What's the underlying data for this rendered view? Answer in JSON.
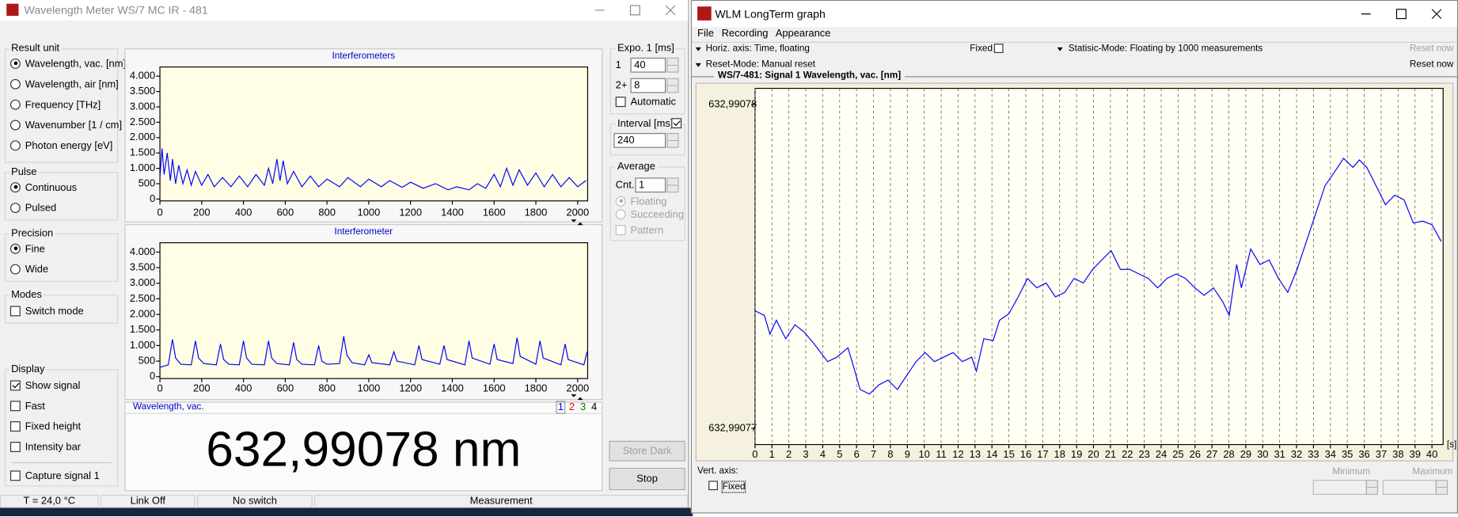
{
  "left_window": {
    "title": "Wavelength Meter WS/7 MC IR - 481",
    "result_unit": {
      "label": "Result unit",
      "options": [
        "Wavelength, vac.  [nm]",
        "Wavelength, air  [nm]",
        "Frequency  [THz]",
        "Wavenumber  [1 / cm]",
        "Photon energy  [eV]"
      ],
      "selected": 0
    },
    "pulse": {
      "label": "Pulse",
      "options": [
        "Continuous",
        "Pulsed"
      ],
      "selected": 0
    },
    "precision": {
      "label": "Precision",
      "options": [
        "Fine",
        "Wide"
      ],
      "selected": 0
    },
    "modes": {
      "label": "Modes",
      "options": [
        {
          "label": "Switch mode",
          "checked": false
        }
      ]
    },
    "display": {
      "label": "Display",
      "options": [
        {
          "label": "Show signal",
          "checked": true
        },
        {
          "label": "Fast",
          "checked": false
        },
        {
          "label": "Fixed height",
          "checked": false
        },
        {
          "label": "Intensity bar",
          "checked": false
        },
        {
          "label": "Capture signal 1",
          "checked": false
        }
      ]
    },
    "charts": [
      {
        "type": "line",
        "title": "Interferometers",
        "color": "#0000ff",
        "x": [
          0,
          10,
          20,
          35,
          50,
          60,
          75,
          90,
          110,
          130,
          150,
          170,
          200,
          230,
          260,
          300,
          340,
          380,
          420,
          460,
          500,
          520,
          540,
          560,
          575,
          590,
          610,
          640,
          680,
          720,
          760,
          800,
          860,
          900,
          960,
          1000,
          1060,
          1100,
          1160,
          1200,
          1260,
          1320,
          1380,
          1420,
          1480,
          1520,
          1560,
          1600,
          1630,
          1660,
          1690,
          1720,
          1760,
          1800,
          1840,
          1880,
          1920,
          1960,
          2000,
          2040
        ],
        "values": [
          700,
          1650,
          800,
          1500,
          600,
          1300,
          500,
          1100,
          500,
          950,
          450,
          900,
          450,
          800,
          400,
          700,
          400,
          750,
          400,
          800,
          450,
          1000,
          500,
          1300,
          600,
          1250,
          500,
          900,
          400,
          750,
          400,
          650,
          400,
          700,
          400,
          650,
          400,
          600,
          380,
          550,
          350,
          500,
          300,
          400,
          300,
          500,
          350,
          800,
          400,
          1000,
          450,
          950,
          450,
          850,
          400,
          800,
          400,
          700,
          400,
          600
        ],
        "xlim": [
          0,
          2048
        ],
        "ylim": [
          -60,
          4300
        ],
        "xticks": [
          0,
          200,
          400,
          600,
          800,
          1000,
          1200,
          1400,
          1600,
          1800,
          2000
        ],
        "yticks": [
          0,
          500,
          {
            "value": 1000,
            "label": "1.000"
          },
          {
            "value": 1500,
            "label": "1.500"
          },
          {
            "value": 2000,
            "label": "2.000"
          },
          {
            "value": 2500,
            "label": "2.500"
          },
          {
            "value": 3000,
            "label": "3.000"
          },
          {
            "value": 3500,
            "label": "3.500"
          },
          {
            "value": 4000,
            "label": "4.000"
          }
        ]
      },
      {
        "type": "line",
        "title": "Interferometer",
        "color": "#0000ff",
        "x": [
          0,
          40,
          60,
          75,
          100,
          150,
          170,
          185,
          210,
          270,
          290,
          305,
          330,
          380,
          400,
          415,
          440,
          500,
          520,
          535,
          560,
          620,
          640,
          655,
          680,
          740,
          760,
          775,
          800,
          860,
          880,
          895,
          920,
          980,
          1000,
          1015,
          1100,
          1120,
          1135,
          1220,
          1240,
          1255,
          1340,
          1360,
          1375,
          1460,
          1480,
          1495,
          1580,
          1600,
          1615,
          1690,
          1710,
          1725,
          1800,
          1820,
          1835,
          1920,
          1940,
          1955,
          2030,
          2045
        ],
        "values": [
          300,
          380,
          1200,
          600,
          400,
          380,
          1150,
          600,
          420,
          380,
          1050,
          550,
          400,
          380,
          1150,
          600,
          400,
          380,
          1150,
          600,
          420,
          380,
          1100,
          550,
          400,
          380,
          1000,
          500,
          400,
          420,
          1300,
          700,
          450,
          380,
          700,
          450,
          380,
          800,
          500,
          380,
          1000,
          550,
          400,
          1000,
          550,
          380,
          1150,
          600,
          400,
          1050,
          550,
          420,
          1250,
          650,
          400,
          1150,
          600,
          380,
          1050,
          550,
          380,
          800
        ],
        "xlim": [
          0,
          2048
        ],
        "ylim": [
          -60,
          4300
        ],
        "xticks": [
          0,
          200,
          400,
          600,
          800,
          1000,
          1200,
          1400,
          1600,
          1800,
          2000
        ],
        "yticks": [
          0,
          500,
          {
            "value": 1000,
            "label": "1.000"
          },
          {
            "value": 1500,
            "label": "1.500"
          },
          {
            "value": 2000,
            "label": "2.000"
          },
          {
            "value": 2500,
            "label": "2.500"
          },
          {
            "value": 3000,
            "label": "3.000"
          },
          {
            "value": 3500,
            "label": "3.500"
          },
          {
            "value": 4000,
            "label": "4.000"
          }
        ]
      }
    ],
    "readout": {
      "label": "Wavelength,  vac.",
      "value": "632,99078 nm",
      "signals": [
        {
          "label": "1",
          "color": "#0000ff"
        },
        {
          "label": "2",
          "color": "#ff0000"
        },
        {
          "label": "3",
          "color": "#008000"
        },
        {
          "label": "4",
          "color": "#000000"
        }
      ]
    },
    "exposure": {
      "label": "Expo. 1  [ms]",
      "rows": [
        {
          "label": "1",
          "value": 40
        },
        {
          "label": "2+",
          "value": 8
        }
      ],
      "automatic": {
        "label": "Automatic",
        "checked": false
      }
    },
    "interval": {
      "label": "Interval [ms]",
      "checked": true,
      "value": 240
    },
    "average": {
      "label": "Average",
      "count_label": "Cnt.",
      "count": 1,
      "options": [
        "Floating",
        "Succeeding"
      ],
      "selected": 0,
      "pattern": {
        "label": "Pattern",
        "checked": false
      }
    },
    "buttons": [
      "Store Dark",
      "Stop"
    ],
    "status": [
      "T = 24,0 °C",
      "Link Off",
      "No switch",
      "Measurement"
    ]
  },
  "right_window": {
    "title": "WLM LongTerm graph",
    "menu": [
      "File",
      "Recording",
      "Appearance"
    ],
    "horiz_axis": "Horiz. axis: Time,  floating",
    "fixed": {
      "label": "Fixed",
      "checked": false
    },
    "statistic_mode": "Statisic-Mode: Floating by 1000 measurements",
    "reset_now": [
      "Reset now",
      "Reset now"
    ],
    "reset_mode": "Reset-Mode: Manual reset",
    "chart": {
      "type": "line",
      "title": "WS/7-481: Signal 1  Wavelength, vac.  [nm]",
      "x_unit": "[s]",
      "color": "#0000ff",
      "grid": true,
      "x": [
        0,
        0.55,
        0.88,
        1.26,
        1.81,
        2.36,
        2.91,
        3.46,
        4.29,
        4.84,
        5.49,
        5.82,
        6.21,
        6.76,
        7.31,
        7.86,
        8.41,
        8.96,
        9.51,
        10.05,
        10.6,
        11.15,
        11.7,
        12.25,
        12.8,
        13.08,
        13.52,
        14.07,
        14.45,
        15,
        15.55,
        16.1,
        16.65,
        17.2,
        17.75,
        18.3,
        18.85,
        19.4,
        19.95,
        20.49,
        21.04,
        21.59,
        22.14,
        22.69,
        23.24,
        23.79,
        24.34,
        24.89,
        25.44,
        25.99,
        26.54,
        27.09,
        27.64,
        28.02,
        28.46,
        28.74,
        29.29,
        29.84,
        30.38,
        30.93,
        31.48,
        32.03,
        32.58,
        33.13,
        33.68,
        34.23,
        34.78,
        35.33,
        35.71,
        36.15,
        36.7,
        37.25,
        37.8,
        38.35,
        38.9,
        39.45,
        40,
        40.55
      ],
      "values": [
        632.99077363,
        632.99077349,
        632.99077291,
        632.99077334,
        632.99077277,
        632.9907732,
        632.99077297,
        632.99077263,
        632.99077206,
        632.9907722,
        632.99077249,
        632.99077191,
        632.9907712,
        632.99077106,
        632.99077134,
        632.99077149,
        632.9907712,
        632.99077163,
        632.99077206,
        632.99077234,
        632.99077206,
        632.9907722,
        632.99077234,
        632.99077206,
        632.9907722,
        632.99077177,
        632.99077277,
        632.99077271,
        632.99077334,
        632.99077354,
        632.99077406,
        632.99077463,
        632.99077434,
        632.99077449,
        632.99077406,
        632.9907742,
        632.99077463,
        632.99077449,
        632.99077491,
        632.9907752,
        632.99077549,
        632.99077491,
        632.99077491,
        632.99077477,
        632.99077463,
        632.99077434,
        632.99077463,
        632.99077477,
        632.99077463,
        632.99077434,
        632.99077411,
        632.99077434,
        632.99077391,
        632.99077349,
        632.99077506,
        632.99077434,
        632.99077554,
        632.99077506,
        632.9907752,
        632.99077463,
        632.9907742,
        632.99077491,
        632.99077577,
        632.99077663,
        632.99077749,
        632.99077791,
        632.99077834,
        632.99077806,
        632.99077829,
        632.99077806,
        632.99077749,
        632.99077691,
        632.9907772,
        632.99077706,
        632.99077634,
        632.9907764,
        632.99077629,
        632.99077577
      ],
      "xlim": [
        0,
        40.66
      ],
      "ylim": [
        632.9907695,
        632.9907805
      ],
      "xticks": [
        0,
        1,
        2,
        3,
        4,
        5,
        6,
        7,
        8,
        9,
        10,
        11,
        12,
        13,
        14,
        15,
        16,
        17,
        18,
        19,
        20,
        21,
        22,
        23,
        24,
        25,
        26,
        27,
        28,
        29,
        30,
        31,
        32,
        33,
        34,
        35,
        36,
        37,
        38,
        39,
        40
      ],
      "yticks": [
        {
          "value": 632.99077,
          "label": "632,99077"
        },
        {
          "value": 632.99078,
          "label": "632,99078"
        }
      ]
    },
    "vert_axis": {
      "label": "Vert. axis:",
      "fixed": {
        "label": "Fixed",
        "checked": false
      },
      "minimum": "Minimum",
      "maximum": "Maximum"
    }
  }
}
